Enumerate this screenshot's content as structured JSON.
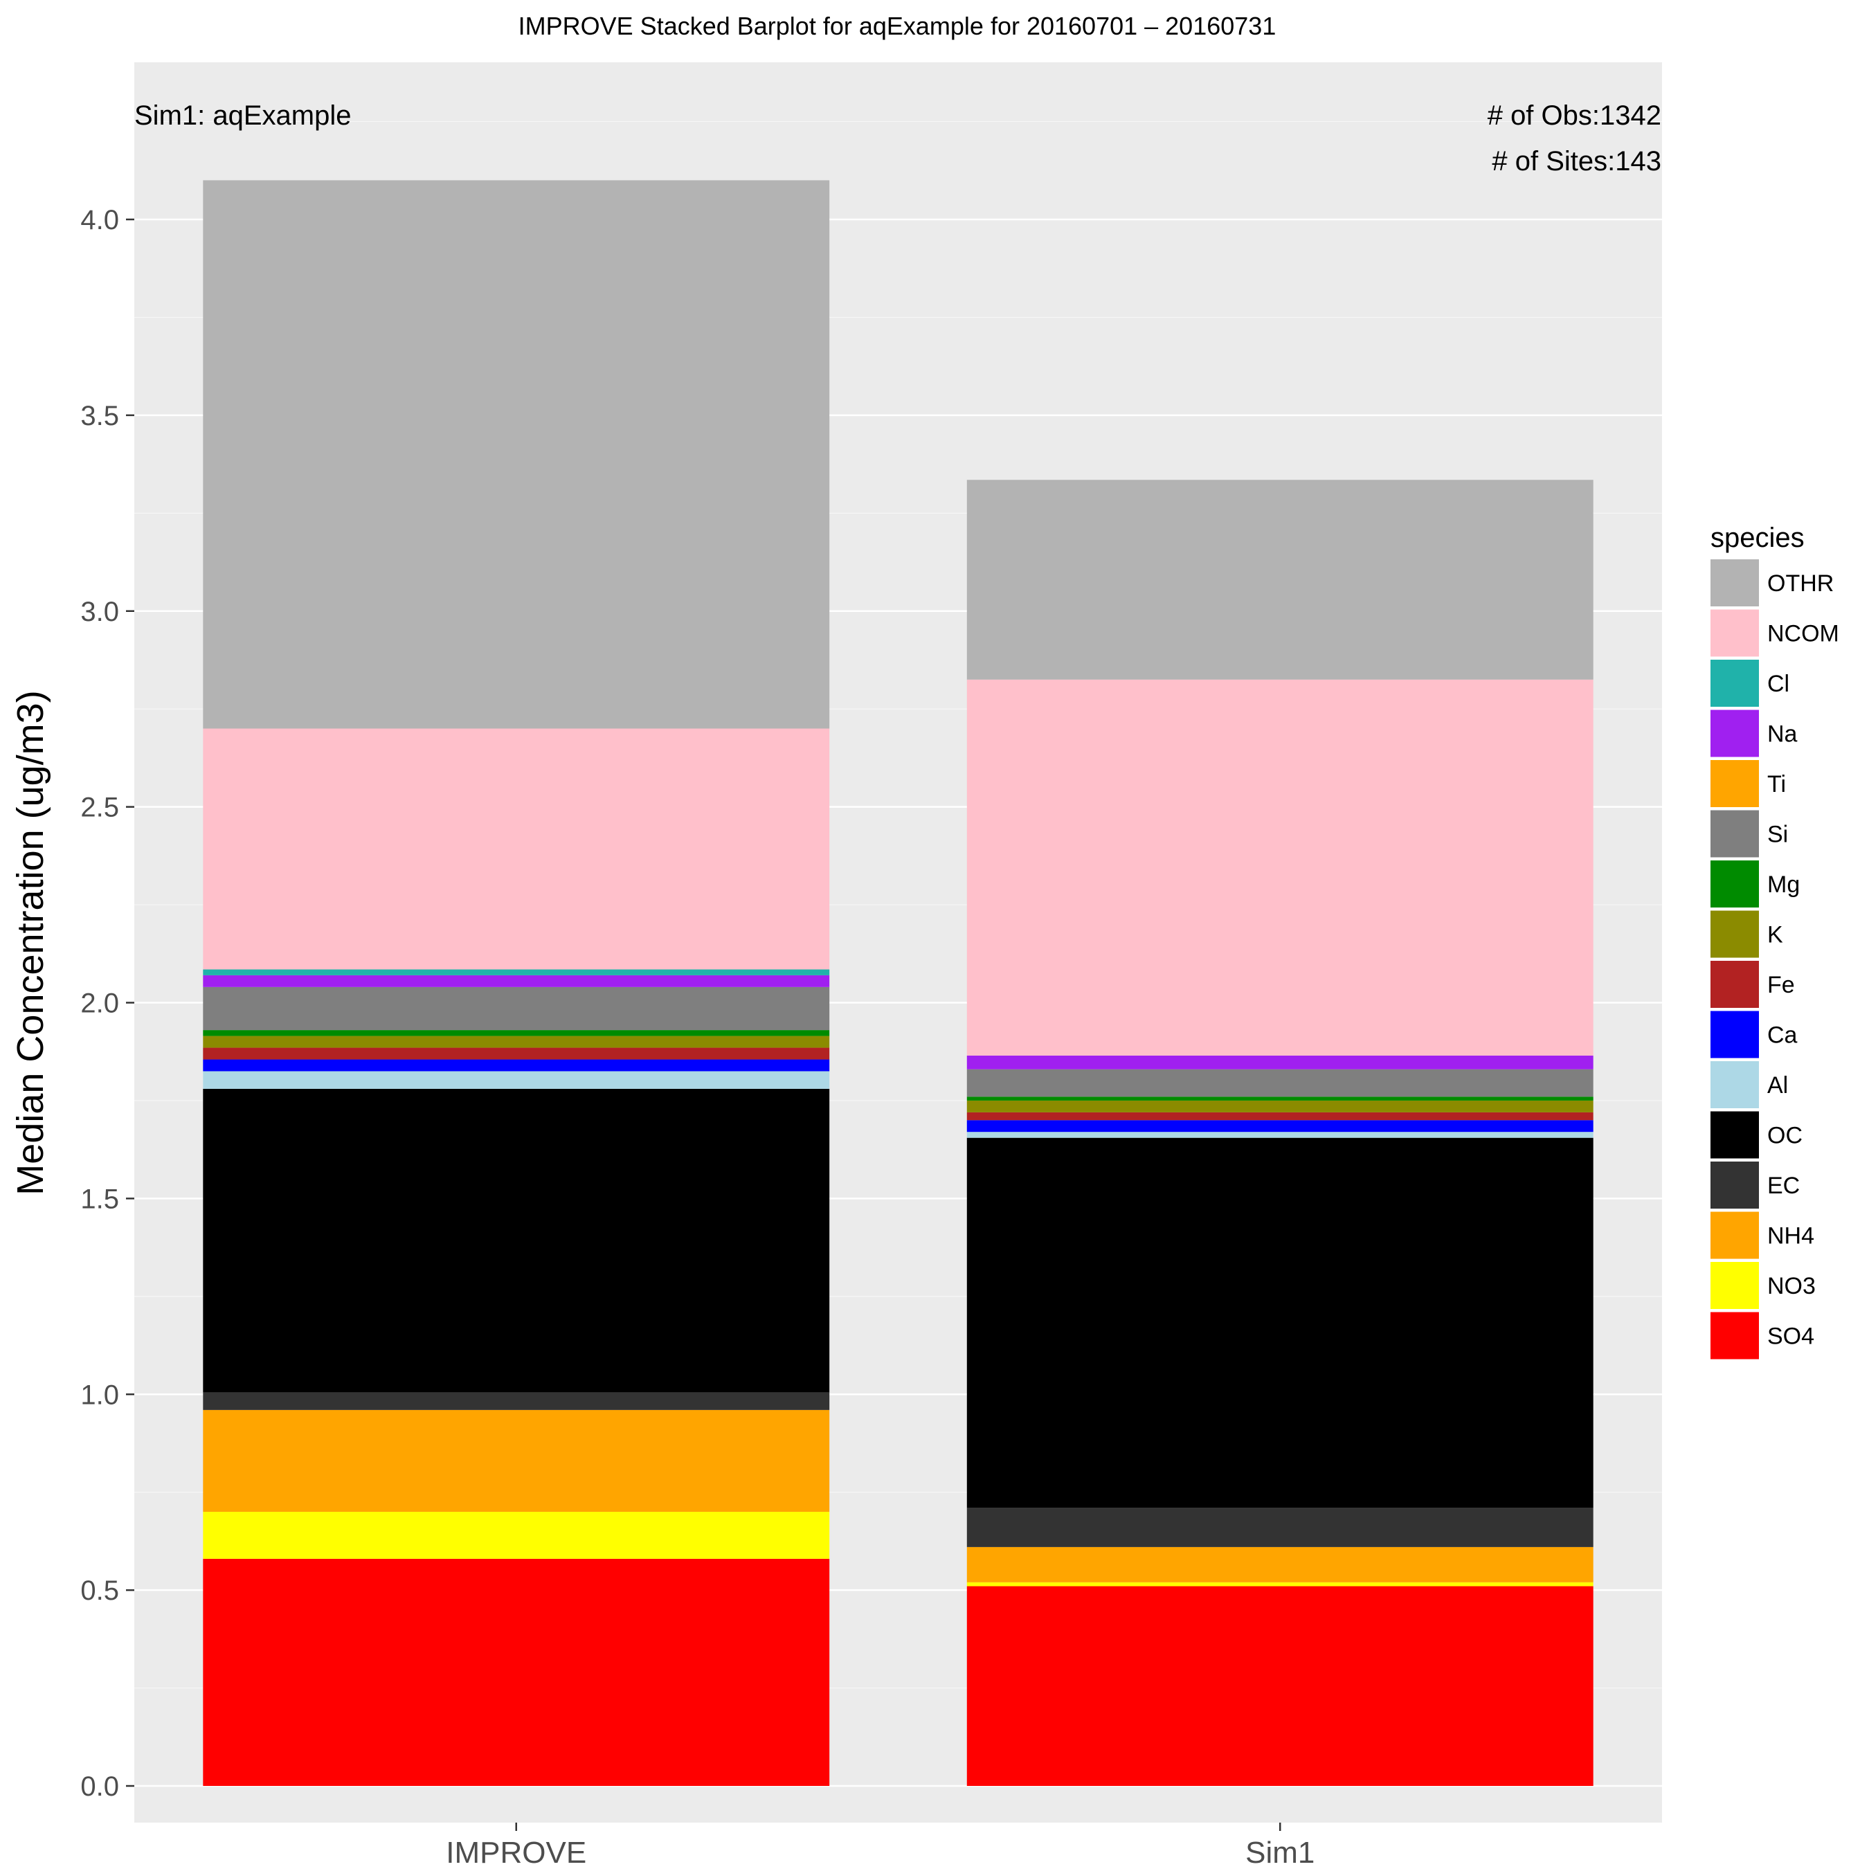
{
  "chart_data": {
    "type": "bar",
    "stacked": true,
    "title": "IMPROVE Stacked Barplot for aqExample for 20160701 – 20160731",
    "ylabel": "Median Concentration (ug/m3)",
    "xlabel": "",
    "categories": [
      "IMPROVE",
      "Sim1"
    ],
    "ylim": [
      -0.1,
      4.3
    ],
    "yticks": [
      "0.0",
      "0.5",
      "1.0",
      "1.5",
      "2.0",
      "2.5",
      "3.0",
      "3.5",
      "4.0"
    ],
    "grid": true,
    "legend_position": "right",
    "legend_title": "species",
    "annotations": {
      "sim_label": "Sim1: aqExample",
      "obs_count": "# of Obs:1342",
      "sites_count": "# of Sites:143"
    },
    "series": [
      {
        "name": "SO4",
        "color": "#FF0000",
        "values": [
          0.58,
          0.51
        ]
      },
      {
        "name": "NO3",
        "color": "#FFFF00",
        "values": [
          0.12,
          0.01
        ]
      },
      {
        "name": "NH4",
        "color": "#FFA500",
        "values": [
          0.26,
          0.09
        ]
      },
      {
        "name": "EC",
        "color": "#333333",
        "values": [
          0.045,
          0.1
        ]
      },
      {
        "name": "OC",
        "color": "#000000",
        "values": [
          0.775,
          0.945
        ]
      },
      {
        "name": "Al",
        "color": "#ADD8E6",
        "values": [
          0.045,
          0.015
        ]
      },
      {
        "name": "Ca",
        "color": "#0000FF",
        "values": [
          0.03,
          0.03
        ]
      },
      {
        "name": "Fe",
        "color": "#B22222",
        "values": [
          0.03,
          0.02
        ]
      },
      {
        "name": "K",
        "color": "#8B8B00",
        "values": [
          0.03,
          0.03
        ]
      },
      {
        "name": "Mg",
        "color": "#008B00",
        "values": [
          0.015,
          0.01
        ]
      },
      {
        "name": "Si",
        "color": "#7F7F7F",
        "values": [
          0.11,
          0.07
        ]
      },
      {
        "name": "Ti",
        "color": "#FFA500",
        "values": [
          0.0,
          0.0
        ]
      },
      {
        "name": "Na",
        "color": "#A020F0",
        "values": [
          0.03,
          0.035
        ]
      },
      {
        "name": "Cl",
        "color": "#20B2AA",
        "values": [
          0.015,
          0.0
        ]
      },
      {
        "name": "NCOM",
        "color": "#FFC0CB",
        "values": [
          0.615,
          0.96
        ]
      },
      {
        "name": "OTHR",
        "color": "#B3B3B3",
        "values": [
          1.4,
          0.51
        ]
      }
    ],
    "colors": {
      "panel_background": "#EBEBEB",
      "grid_major": "#FFFFFF",
      "grid_minor": "#F7F7F7",
      "tick_text": "#4D4D4D",
      "text": "#000000"
    }
  }
}
